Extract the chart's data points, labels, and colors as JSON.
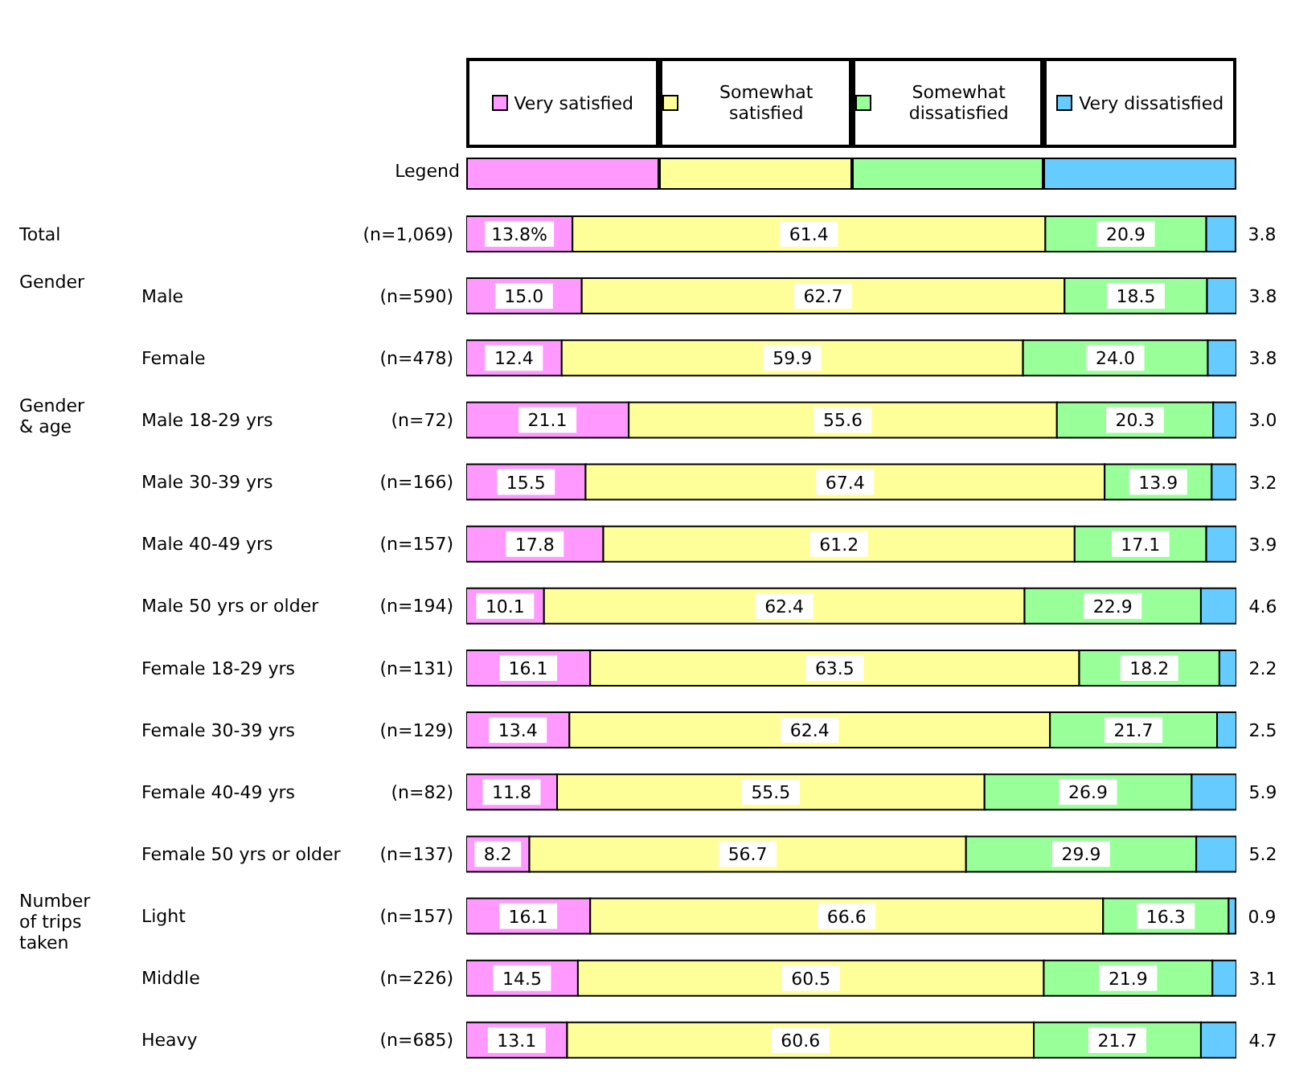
{
  "chart_data": {
    "type": "bar",
    "orientation": "horizontal",
    "stacked": true,
    "legend": "top",
    "legend_title": "Legend",
    "tick_labels": "y",
    "xlim": [
      0,
      100
    ],
    "data_labels": true,
    "annotations": [
      "Gender",
      "Gender & age",
      "Number of trips taken"
    ],
    "categories": [
      "Total (n=1,069)",
      "Male (n=590)",
      "Female (n=478)",
      "Male 18-29 yrs (n=72)",
      "Male 30-39 yrs (n=166)",
      "Male 40-49 yrs (n=157)",
      "Male 50 yrs or older (n=194)",
      "Female 18-29 yrs (n=131)",
      "Female 30-39 yrs (n=129)",
      "Female 40-49 yrs (n=82)",
      "Female 50 yrs or older (n=137)",
      "Light (n=157)",
      "Middle (n=226)",
      "Heavy (n=685)"
    ],
    "series": [
      {
        "name": "Very satisfied",
        "color": "#ff99ff",
        "values": [
          13.8,
          15.0,
          12.4,
          21.1,
          15.5,
          17.8,
          10.1,
          16.1,
          13.4,
          11.8,
          8.2,
          16.1,
          14.5,
          13.1
        ],
        "value_labels": [
          "13.8%",
          "15.0",
          "12.4",
          "21.1",
          "15.5",
          "17.8",
          "10.1",
          "16.1",
          "13.4",
          "11.8",
          "8.2",
          "16.1",
          "14.5",
          "13.1"
        ]
      },
      {
        "name": "Somewhat satisfied",
        "color": "#ffff99",
        "values": [
          61.4,
          62.7,
          59.9,
          55.6,
          67.4,
          61.2,
          62.4,
          63.5,
          62.4,
          55.5,
          56.7,
          66.6,
          60.5,
          60.6
        ]
      },
      {
        "name": "Somewhat dissatisfied",
        "color": "#99ff99",
        "values": [
          20.9,
          18.5,
          24.0,
          20.3,
          13.9,
          17.1,
          22.9,
          18.2,
          21.7,
          26.9,
          29.9,
          16.3,
          21.9,
          21.7
        ],
        "value_labels": [
          "20.9",
          "18.5",
          "24.0",
          "20.3",
          "13.9",
          "17.1",
          "22.9",
          "18.2",
          "21.7",
          "26.9",
          "29.9",
          "16.3",
          "21.9",
          "21.7"
        ]
      },
      {
        "name": "Very dissatisfied",
        "color": "#66ccff",
        "values": [
          3.8,
          3.8,
          3.8,
          3.0,
          3.2,
          3.9,
          4.6,
          2.2,
          2.5,
          5.9,
          5.2,
          0.9,
          3.1,
          4.7
        ],
        "value_labels": [
          "3.8",
          "3.8",
          "3.8",
          "3.0",
          "3.2",
          "3.9",
          "4.6",
          "2.2",
          "2.5",
          "5.9",
          "5.2",
          "0.9",
          "3.1",
          "4.7"
        ]
      }
    ]
  }
}
